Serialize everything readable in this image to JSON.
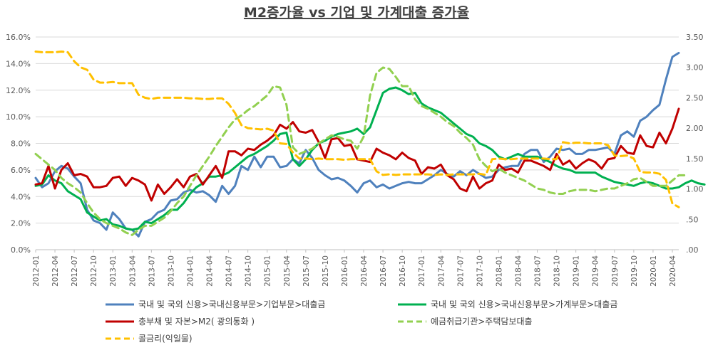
{
  "chart_data": {
    "type": "line",
    "title": "M2증가율 vs 기업 및 가계대출 증가율",
    "xlabel": "",
    "ylabel_left": "",
    "ylabel_right": "",
    "ylim_left": [
      0,
      16
    ],
    "ylim_right": [
      0,
      3.5
    ],
    "yticks_left": [
      "0.0%",
      "2.0%",
      "4.0%",
      "6.0%",
      "8.0%",
      "10.0%",
      "12.0%",
      "14.0%",
      "16.0%"
    ],
    "yticks_right": [
      ".00",
      ".50",
      "1.00",
      "1.50",
      "2.00",
      "2.50",
      "3.00",
      "3.50"
    ],
    "xticks": [
      "2012-01",
      "2012-04",
      "2012-07",
      "2012-10",
      "2013-01",
      "2013-04",
      "2013-07",
      "2013-10",
      "2014-01",
      "2014-04",
      "2014-07",
      "2014-10",
      "2015-01",
      "2015-04",
      "2015-07",
      "2015-10",
      "2016-01",
      "2016-04",
      "2016-07",
      "2016-10",
      "2017-01",
      "2017-04",
      "2017-07",
      "2017-10",
      "2018-01",
      "2018-04",
      "2018-07",
      "2018-10",
      "2019-01",
      "2019-04",
      "2019-07",
      "2019-10",
      "2020-01",
      "2020-04"
    ],
    "grid": true,
    "legend_position": "bottom",
    "x_start": "2012-01",
    "series": [
      {
        "name": "국내 및 국외 신용>국내신용부문>기업부문>대출금",
        "axis": "left",
        "color": "#4f81bd",
        "dash": false,
        "values": [
          5.4,
          4.7,
          5.0,
          5.9,
          6.3,
          6.1,
          5.5,
          5.0,
          3.0,
          2.2,
          2.0,
          1.5,
          2.8,
          2.3,
          1.6,
          1.5,
          1.0,
          2.1,
          2.3,
          2.8,
          3.0,
          3.7,
          3.8,
          4.3,
          4.5,
          4.3,
          4.4,
          4.1,
          3.6,
          4.8,
          4.2,
          4.8,
          6.3,
          6.0,
          7.0,
          6.2,
          7.0,
          7.0,
          6.2,
          6.3,
          6.8,
          6.5,
          7.5,
          6.9,
          6.0,
          5.6,
          5.3,
          5.4,
          5.2,
          4.8,
          4.3,
          5.0,
          5.2,
          4.7,
          4.9,
          4.6,
          4.8,
          5.0,
          5.1,
          5.0,
          5.0,
          5.3,
          5.6,
          6.0,
          5.7,
          5.5,
          5.9,
          5.6,
          6.0,
          5.7,
          5.4,
          5.5,
          6.0,
          6.2,
          6.3,
          6.3,
          7.2,
          7.5,
          7.5,
          6.6,
          7.0,
          7.6,
          7.5,
          7.6,
          7.2,
          7.2,
          7.5,
          7.5,
          7.6,
          7.7,
          7.2,
          8.6,
          8.9,
          8.5,
          9.7,
          10.0,
          10.5,
          10.9,
          12.8,
          14.5,
          14.8
        ]
      },
      {
        "name": "국내 및 국외 신용>국내신용부문>가계부문>대출금",
        "axis": "left",
        "color": "#00b050",
        "dash": false,
        "values": [
          4.8,
          4.9,
          5.6,
          5.2,
          5.0,
          4.4,
          4.1,
          3.8,
          2.8,
          2.5,
          2.2,
          2.3,
          1.9,
          1.8,
          1.6,
          1.5,
          1.6,
          2.1,
          2.0,
          2.3,
          2.6,
          3.0,
          3.0,
          3.5,
          4.2,
          4.7,
          5.0,
          5.5,
          5.5,
          5.6,
          5.8,
          6.2,
          6.6,
          7.0,
          7.2,
          7.5,
          7.8,
          8.2,
          8.7,
          8.8,
          6.8,
          6.3,
          6.8,
          7.5,
          8.0,
          8.2,
          8.5,
          8.7,
          8.8,
          8.9,
          9.1,
          8.7,
          9.2,
          10.5,
          11.8,
          12.1,
          12.2,
          12.0,
          11.7,
          11.8,
          11.0,
          10.7,
          10.5,
          10.3,
          9.9,
          9.5,
          9.1,
          8.7,
          8.5,
          8.0,
          7.8,
          7.5,
          7.0,
          6.8,
          7.0,
          7.2,
          7.0,
          7.0,
          7.0,
          6.8,
          6.6,
          6.3,
          6.1,
          6.0,
          5.8,
          5.8,
          5.8,
          5.8,
          5.5,
          5.3,
          5.1,
          5.0,
          4.9,
          4.8,
          5.0,
          5.1,
          5.0,
          4.8,
          4.6,
          4.6,
          4.7,
          5.0,
          5.2,
          5.0,
          4.9
        ]
      },
      {
        "name": "총부채 및 자본>M2( 광의통화 )",
        "axis": "left",
        "color": "#c00000",
        "dash": false,
        "values": [
          4.9,
          5.0,
          6.3,
          4.6,
          6.0,
          6.5,
          5.6,
          5.7,
          5.5,
          4.7,
          4.7,
          4.8,
          5.4,
          5.5,
          4.8,
          5.4,
          5.2,
          4.9,
          3.7,
          4.9,
          4.2,
          4.7,
          5.3,
          4.7,
          5.5,
          5.7,
          4.9,
          5.6,
          6.3,
          5.4,
          7.4,
          7.4,
          7.1,
          7.6,
          7.5,
          7.9,
          8.2,
          8.6,
          9.4,
          9.1,
          9.6,
          8.9,
          8.8,
          9.0,
          8.1,
          6.9,
          8.3,
          8.4,
          7.8,
          7.9,
          6.8,
          6.7,
          6.6,
          7.6,
          7.3,
          7.1,
          6.8,
          7.3,
          6.9,
          6.7,
          5.7,
          6.2,
          6.1,
          6.4,
          5.6,
          5.3,
          4.6,
          4.4,
          5.5,
          4.6,
          5.0,
          5.2,
          6.4,
          6.0,
          6.1,
          5.8,
          6.7,
          6.7,
          6.5,
          6.3,
          6.0,
          7.2,
          6.4,
          6.7,
          6.1,
          6.5,
          6.8,
          6.6,
          6.1,
          6.8,
          6.9,
          7.8,
          7.3,
          7.2,
          8.6,
          7.8,
          7.7,
          8.8,
          8.0,
          9.1,
          10.6
        ]
      },
      {
        "name": "예금취급기관>주택담보대출",
        "axis": "left",
        "color": "#92d050",
        "dash": true,
        "values": [
          7.2,
          6.8,
          6.4,
          6.0,
          5.4,
          5.0,
          4.7,
          4.3,
          3.5,
          2.8,
          2.3,
          2.0,
          1.8,
          1.6,
          1.3,
          1.1,
          1.5,
          1.8,
          1.8,
          2.1,
          2.4,
          2.9,
          3.5,
          4.0,
          4.8,
          5.6,
          6.3,
          7.0,
          7.8,
          8.5,
          9.2,
          9.8,
          10.1,
          10.5,
          10.8,
          11.2,
          11.6,
          12.3,
          12.2,
          10.9,
          7.7,
          7.2,
          7.4,
          7.6,
          8.0,
          8.3,
          8.6,
          8.5,
          8.3,
          8.2,
          7.6,
          8.5,
          11.6,
          13.3,
          13.7,
          13.6,
          13.0,
          12.3,
          12.3,
          11.3,
          10.8,
          10.6,
          10.3,
          10.0,
          9.6,
          9.3,
          8.8,
          8.4,
          7.9,
          6.8,
          6.3,
          5.9,
          6.1,
          5.8,
          5.6,
          5.4,
          5.2,
          4.9,
          4.6,
          4.5,
          4.3,
          4.2,
          4.2,
          4.4,
          4.5,
          4.5,
          4.5,
          4.4,
          4.5,
          4.6,
          4.6,
          4.8,
          5.0,
          5.3,
          5.4,
          5.1,
          4.8,
          4.8,
          4.8,
          5.2,
          5.6,
          5.6
        ]
      },
      {
        "name": "콜금리(익일물)",
        "axis": "right",
        "color": "#ffc000",
        "dash": true,
        "values": [
          3.26,
          3.25,
          3.25,
          3.25,
          3.26,
          3.25,
          3.1,
          3.0,
          2.96,
          2.8,
          2.75,
          2.75,
          2.76,
          2.74,
          2.74,
          2.74,
          2.55,
          2.5,
          2.48,
          2.5,
          2.5,
          2.5,
          2.5,
          2.5,
          2.49,
          2.49,
          2.48,
          2.48,
          2.49,
          2.49,
          2.4,
          2.25,
          2.05,
          2.0,
          1.99,
          1.98,
          1.99,
          1.96,
          1.75,
          1.74,
          1.6,
          1.5,
          1.5,
          1.49,
          1.5,
          1.49,
          1.49,
          1.49,
          1.48,
          1.49,
          1.49,
          1.49,
          1.49,
          1.29,
          1.23,
          1.24,
          1.23,
          1.24,
          1.24,
          1.24,
          1.24,
          1.24,
          1.23,
          1.24,
          1.23,
          1.24,
          1.24,
          1.24,
          1.24,
          1.25,
          1.23,
          1.49,
          1.5,
          1.49,
          1.49,
          1.5,
          1.5,
          1.5,
          1.5,
          1.5,
          1.49,
          1.49,
          1.77,
          1.75,
          1.76,
          1.76,
          1.75,
          1.75,
          1.75,
          1.72,
          1.55,
          1.54,
          1.55,
          1.5,
          1.28,
          1.27,
          1.27,
          1.25,
          1.15,
          0.76,
          0.7
        ]
      }
    ]
  }
}
